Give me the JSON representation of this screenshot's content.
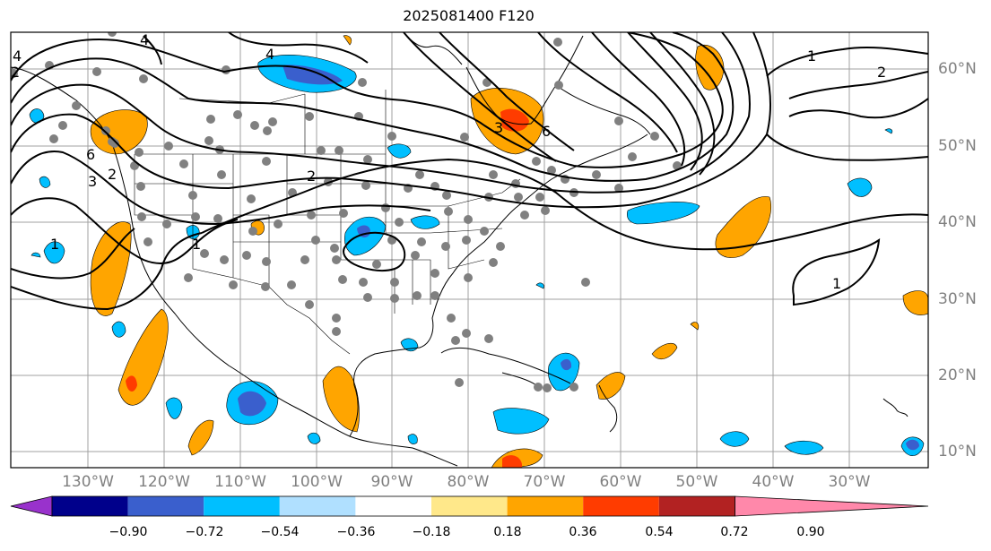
{
  "title": "2025081400 F120",
  "lon_labels": [
    "130°W",
    "120°W",
    "110°W",
    "100°W",
    "90°W",
    "80°W",
    "70°W",
    "60°W",
    "50°W",
    "40°W",
    "30°W"
  ],
  "lat_labels": [
    "60°N",
    "50°N",
    "40°N",
    "30°N",
    "20°N",
    "10°N"
  ],
  "colorbar": {
    "ticks": [
      "−0.90",
      "−0.72",
      "−0.54",
      "−0.36",
      "−0.18",
      "0.18",
      "0.36",
      "0.54",
      "0.72",
      "0.90"
    ],
    "colors": [
      "#9932cc",
      "#00008b",
      "#3a5fcd",
      "#00bfff",
      "#b0e0ff",
      "#ffffff",
      "#ffe88a",
      "#ffa500",
      "#ff3c00",
      "#b22222",
      "#ff88aa"
    ]
  },
  "contour_labels": [
    "4",
    "4",
    "4",
    "3",
    "2",
    "1",
    "2",
    "3",
    "6",
    "1",
    "2",
    "1",
    "1",
    "2",
    "6"
  ],
  "colors": {
    "grid": "#a0a0a0",
    "label": "#808080",
    "contour": "#000000"
  }
}
